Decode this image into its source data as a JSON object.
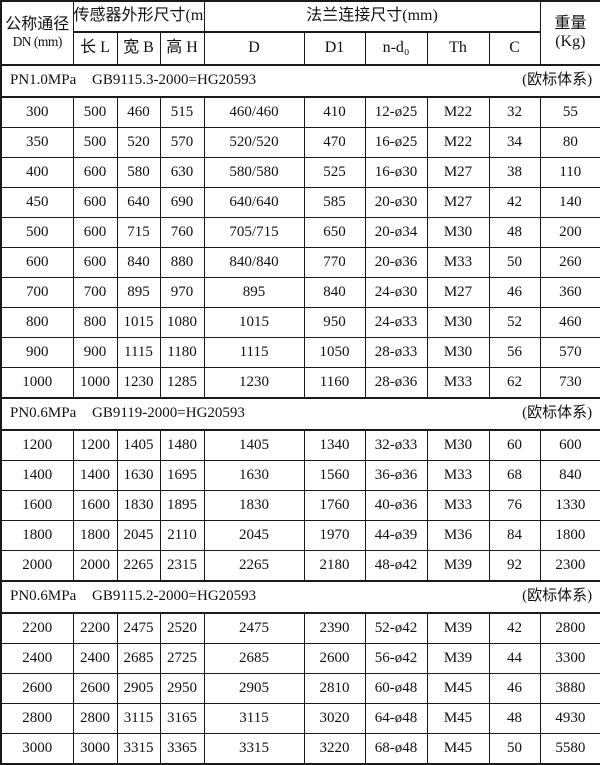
{
  "table": {
    "header": {
      "dn": {
        "line1": "公称通径",
        "line2": "DN (mm)"
      },
      "sensor_group": "传感器外形尺寸(mm)",
      "sensor_cols": [
        "长 L",
        "宽 B",
        "高 H"
      ],
      "flange_group": "法兰连接尺寸(mm)",
      "flange_cols": [
        "D",
        "D1",
        "n-d₀",
        "Th",
        "C"
      ],
      "weight": {
        "line1": "重量",
        "line2": "(Kg)"
      }
    },
    "sections": [
      {
        "pn": "PN1.0MPa",
        "standard": "GB9115.3-2000=HG20593",
        "note": "(欧标体系)",
        "rows": [
          [
            "300",
            "500",
            "460",
            "515",
            "460/460",
            "410",
            "12-ø25",
            "M22",
            "32",
            "55"
          ],
          [
            "350",
            "500",
            "520",
            "570",
            "520/520",
            "470",
            "16-ø25",
            "M22",
            "34",
            "80"
          ],
          [
            "400",
            "600",
            "580",
            "630",
            "580/580",
            "525",
            "16-ø30",
            "M27",
            "38",
            "110"
          ],
          [
            "450",
            "600",
            "640",
            "690",
            "640/640",
            "585",
            "20-ø30",
            "M27",
            "42",
            "140"
          ],
          [
            "500",
            "600",
            "715",
            "760",
            "705/715",
            "650",
            "20-ø34",
            "M30",
            "48",
            "200"
          ],
          [
            "600",
            "600",
            "840",
            "880",
            "840/840",
            "770",
            "20-ø36",
            "M33",
            "50",
            "260"
          ],
          [
            "700",
            "700",
            "895",
            "970",
            "895",
            "840",
            "24-ø30",
            "M27",
            "46",
            "360"
          ],
          [
            "800",
            "800",
            "1015",
            "1080",
            "1015",
            "950",
            "24-ø33",
            "M30",
            "52",
            "460"
          ],
          [
            "900",
            "900",
            "1115",
            "1180",
            "1115",
            "1050",
            "28-ø33",
            "M30",
            "56",
            "570"
          ],
          [
            "1000",
            "1000",
            "1230",
            "1285",
            "1230",
            "1160",
            "28-ø36",
            "M33",
            "62",
            "730"
          ]
        ]
      },
      {
        "pn": "PN0.6MPa",
        "standard": "GB9119-2000=HG20593",
        "note": "(欧标体系)",
        "rows": [
          [
            "1200",
            "1200",
            "1405",
            "1480",
            "1405",
            "1340",
            "32-ø33",
            "M30",
            "60",
            "600"
          ],
          [
            "1400",
            "1400",
            "1630",
            "1695",
            "1630",
            "1560",
            "36-ø36",
            "M33",
            "68",
            "840"
          ],
          [
            "1600",
            "1600",
            "1830",
            "1895",
            "1830",
            "1760",
            "40-ø36",
            "M33",
            "76",
            "1330"
          ],
          [
            "1800",
            "1800",
            "2045",
            "2110",
            "2045",
            "1970",
            "44-ø39",
            "M36",
            "84",
            "1800"
          ],
          [
            "2000",
            "2000",
            "2265",
            "2315",
            "2265",
            "2180",
            "48-ø42",
            "M39",
            "92",
            "2300"
          ]
        ]
      },
      {
        "pn": "PN0.6MPa",
        "standard": "GB9115.2-2000=HG20593",
        "note": "(欧标体系)",
        "rows": [
          [
            "2200",
            "2200",
            "2475",
            "2520",
            "2475",
            "2390",
            "52-ø42",
            "M39",
            "42",
            "2800"
          ],
          [
            "2400",
            "2400",
            "2685",
            "2725",
            "2685",
            "2600",
            "56-ø42",
            "M39",
            "44",
            "3300"
          ],
          [
            "2600",
            "2600",
            "2905",
            "2950",
            "2905",
            "2810",
            "60-ø48",
            "M45",
            "46",
            "3880"
          ],
          [
            "2800",
            "2800",
            "3115",
            "3165",
            "3115",
            "3020",
            "64-ø48",
            "M45",
            "48",
            "4930"
          ],
          [
            "3000",
            "3000",
            "3315",
            "3365",
            "3315",
            "3220",
            "68-ø48",
            "M45",
            "50",
            "5580"
          ]
        ]
      }
    ]
  }
}
